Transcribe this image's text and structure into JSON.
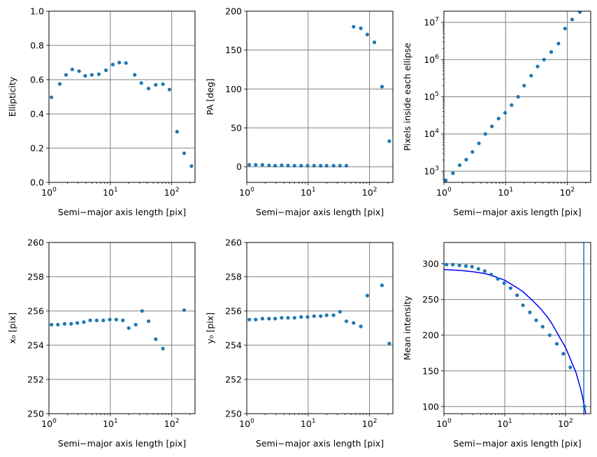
{
  "figure": {
    "background": "#ffffff",
    "point_color": "#1f77b4",
    "grid_color": "#808080"
  },
  "chart_data": [
    {
      "id": "ellipticity",
      "type": "scatter",
      "xscale": "log",
      "yscale": "linear",
      "xlabel": "Semi−major axis length [pix]",
      "ylabel": "Ellipticity",
      "xlim": [
        1,
        240
      ],
      "ylim": [
        0,
        1.0
      ],
      "grid": true,
      "xticks": [
        {
          "v": 1,
          "base": "10",
          "exp": "0"
        },
        {
          "v": 10,
          "base": "10",
          "exp": "1"
        },
        {
          "v": 100,
          "base": "10",
          "exp": "2"
        }
      ],
      "yticks": [
        {
          "v": 0,
          "label": "0.0"
        },
        {
          "v": 0.2,
          "label": "0.2"
        },
        {
          "v": 0.4,
          "label": "0.4"
        },
        {
          "v": 0.6,
          "label": "0.6"
        },
        {
          "v": 0.8,
          "label": "0.8"
        },
        {
          "v": 1.0,
          "label": "1.0"
        }
      ],
      "points": [
        [
          1.1,
          0.497
        ],
        [
          1.5,
          0.575
        ],
        [
          1.9,
          0.628
        ],
        [
          2.4,
          0.66
        ],
        [
          3.1,
          0.65
        ],
        [
          3.9,
          0.622
        ],
        [
          5.0,
          0.628
        ],
        [
          6.5,
          0.632
        ],
        [
          8.5,
          0.655
        ],
        [
          11,
          0.688
        ],
        [
          14,
          0.7
        ],
        [
          18,
          0.697
        ],
        [
          25,
          0.628
        ],
        [
          32,
          0.58
        ],
        [
          42,
          0.548
        ],
        [
          55,
          0.57
        ],
        [
          72,
          0.574
        ],
        [
          92,
          0.542
        ],
        [
          122,
          0.296
        ],
        [
          160,
          0.17
        ],
        [
          210,
          0.095
        ]
      ]
    },
    {
      "id": "pa",
      "type": "scatter",
      "xscale": "log",
      "yscale": "linear",
      "xlabel": "Semi−major axis length [pix]",
      "ylabel": "PA [deg]",
      "xlim": [
        1,
        240
      ],
      "ylim": [
        -20,
        200
      ],
      "grid": true,
      "xticks": [
        {
          "v": 1,
          "base": "10",
          "exp": "0"
        },
        {
          "v": 10,
          "base": "10",
          "exp": "1"
        },
        {
          "v": 100,
          "base": "10",
          "exp": "2"
        }
      ],
      "yticks": [
        {
          "v": 0,
          "label": "0"
        },
        {
          "v": 50,
          "label": "50"
        },
        {
          "v": 100,
          "label": "100"
        },
        {
          "v": 150,
          "label": "150"
        },
        {
          "v": 200,
          "label": "200"
        }
      ],
      "points": [
        [
          1.1,
          2.5
        ],
        [
          1.4,
          2.5
        ],
        [
          1.8,
          2.5
        ],
        [
          2.3,
          1.8
        ],
        [
          2.9,
          1.5
        ],
        [
          3.7,
          2.0
        ],
        [
          4.7,
          1.6
        ],
        [
          6.0,
          1.5
        ],
        [
          7.7,
          1.5
        ],
        [
          9.8,
          1.5
        ],
        [
          12.5,
          1.5
        ],
        [
          16,
          1.5
        ],
        [
          20,
          1.5
        ],
        [
          26,
          1.5
        ],
        [
          33,
          1.5
        ],
        [
          42,
          1.5
        ],
        [
          55,
          180
        ],
        [
          72,
          178
        ],
        [
          92,
          170
        ],
        [
          120,
          160
        ],
        [
          160,
          103
        ],
        [
          210,
          33
        ]
      ]
    },
    {
      "id": "pixels",
      "type": "scatter",
      "xscale": "log",
      "yscale": "log",
      "xlabel": "Semi−major axis length [pix]",
      "ylabel": "Pixels inside each ellipse",
      "xlim": [
        1,
        240
      ],
      "ylim": [
        500,
        20000000
      ],
      "grid": true,
      "xticks": [
        {
          "v": 1,
          "base": "10",
          "exp": "0"
        },
        {
          "v": 10,
          "base": "10",
          "exp": "1"
        },
        {
          "v": 100,
          "base": "10",
          "exp": "2"
        }
      ],
      "yticks": [
        {
          "v": 1000,
          "base": "10",
          "exp": "3"
        },
        {
          "v": 10000,
          "base": "10",
          "exp": "4"
        },
        {
          "v": 100000,
          "base": "10",
          "exp": "5"
        },
        {
          "v": 1000000,
          "base": "10",
          "exp": "6"
        },
        {
          "v": 10000000,
          "base": "10",
          "exp": "7"
        }
      ],
      "points": [
        [
          1.07,
          570
        ],
        [
          1.4,
          880
        ],
        [
          1.8,
          1450
        ],
        [
          2.3,
          2050
        ],
        [
          2.9,
          3300
        ],
        [
          3.7,
          5600
        ],
        [
          4.7,
          10000
        ],
        [
          6.0,
          16000
        ],
        [
          7.7,
          26000
        ],
        [
          9.8,
          37000
        ],
        [
          12.5,
          60000
        ],
        [
          16,
          100000
        ],
        [
          20,
          200000
        ],
        [
          26,
          370000
        ],
        [
          33,
          650000
        ],
        [
          42,
          1000000
        ],
        [
          55,
          1600000
        ],
        [
          72,
          2700000
        ],
        [
          92,
          6800000
        ],
        [
          120,
          12000000
        ],
        [
          160,
          19000000
        ]
      ]
    },
    {
      "id": "x0",
      "type": "scatter",
      "xscale": "log",
      "yscale": "linear",
      "xlabel": "Semi−major axis length [pix]",
      "ylabel": "x₀ [pix]",
      "xlim": [
        1,
        240
      ],
      "ylim": [
        250,
        260
      ],
      "grid": true,
      "xticks": [
        {
          "v": 1,
          "base": "10",
          "exp": "0"
        },
        {
          "v": 10,
          "base": "10",
          "exp": "1"
        },
        {
          "v": 100,
          "base": "10",
          "exp": "2"
        }
      ],
      "yticks": [
        {
          "v": 250,
          "label": "250"
        },
        {
          "v": 252,
          "label": "252"
        },
        {
          "v": 254,
          "label": "254"
        },
        {
          "v": 256,
          "label": "256"
        },
        {
          "v": 258,
          "label": "258"
        },
        {
          "v": 260,
          "label": "260"
        }
      ],
      "points": [
        [
          1.1,
          255.2
        ],
        [
          1.4,
          255.2
        ],
        [
          1.8,
          255.25
        ],
        [
          2.3,
          255.25
        ],
        [
          2.9,
          255.3
        ],
        [
          3.7,
          255.35
        ],
        [
          4.7,
          255.45
        ],
        [
          6.0,
          255.45
        ],
        [
          7.7,
          255.45
        ],
        [
          9.8,
          255.5
        ],
        [
          12.5,
          255.5
        ],
        [
          16,
          255.45
        ],
        [
          20,
          255.0
        ],
        [
          26,
          255.2
        ],
        [
          33,
          256.0
        ],
        [
          42,
          255.4
        ],
        [
          55,
          254.35
        ],
        [
          72,
          253.8
        ],
        [
          160,
          256.05
        ]
      ]
    },
    {
      "id": "y0",
      "type": "scatter",
      "xscale": "log",
      "yscale": "linear",
      "xlabel": "Semi−major axis length [pix]",
      "ylabel": "y₀ [pix]",
      "xlim": [
        1,
        240
      ],
      "ylim": [
        250,
        260
      ],
      "grid": true,
      "xticks": [
        {
          "v": 1,
          "base": "10",
          "exp": "0"
        },
        {
          "v": 10,
          "base": "10",
          "exp": "1"
        },
        {
          "v": 100,
          "base": "10",
          "exp": "2"
        }
      ],
      "yticks": [
        {
          "v": 250,
          "label": "250"
        },
        {
          "v": 252,
          "label": "252"
        },
        {
          "v": 254,
          "label": "254"
        },
        {
          "v": 256,
          "label": "256"
        },
        {
          "v": 258,
          "label": "258"
        },
        {
          "v": 260,
          "label": "260"
        }
      ],
      "points": [
        [
          1.1,
          255.5
        ],
        [
          1.4,
          255.5
        ],
        [
          1.8,
          255.55
        ],
        [
          2.3,
          255.55
        ],
        [
          2.9,
          255.55
        ],
        [
          3.7,
          255.6
        ],
        [
          4.7,
          255.6
        ],
        [
          6.0,
          255.6
        ],
        [
          7.7,
          255.65
        ],
        [
          9.8,
          255.65
        ],
        [
          12.5,
          255.7
        ],
        [
          16,
          255.7
        ],
        [
          20,
          255.75
        ],
        [
          26,
          255.75
        ],
        [
          33,
          255.95
        ],
        [
          42,
          255.4
        ],
        [
          55,
          255.3
        ],
        [
          72,
          255.1
        ],
        [
          92,
          256.9
        ],
        [
          160,
          257.5
        ],
        [
          210,
          254.1
        ]
      ]
    },
    {
      "id": "intensity",
      "type": "scatter",
      "xscale": "log",
      "yscale": "linear",
      "xlabel": "Semi−major axis length [pix]",
      "ylabel": "Mean intensity",
      "xlim": [
        1,
        260
      ],
      "ylim": [
        90,
        330
      ],
      "grid": true,
      "xticks": [
        {
          "v": 1,
          "base": "10",
          "exp": "0"
        },
        {
          "v": 10,
          "base": "10",
          "exp": "1"
        },
        {
          "v": 100,
          "base": "10",
          "exp": "2"
        }
      ],
      "yticks": [
        {
          "v": 100,
          "label": "100"
        },
        {
          "v": 150,
          "label": "150"
        },
        {
          "v": 200,
          "label": "200"
        },
        {
          "v": 250,
          "label": "250"
        },
        {
          "v": 300,
          "label": "300"
        }
      ],
      "points": [
        [
          1.1,
          299
        ],
        [
          1.4,
          299
        ],
        [
          1.8,
          298
        ],
        [
          2.3,
          297
        ],
        [
          2.9,
          296
        ],
        [
          3.7,
          293
        ],
        [
          4.7,
          290
        ],
        [
          6.0,
          285
        ],
        [
          7.7,
          279
        ],
        [
          9.8,
          273
        ],
        [
          12.5,
          266
        ],
        [
          16,
          256
        ],
        [
          20,
          242
        ],
        [
          26,
          232
        ],
        [
          33,
          221
        ],
        [
          42,
          212
        ],
        [
          55,
          200
        ],
        [
          72,
          188
        ],
        [
          92,
          174
        ],
        [
          120,
          155
        ],
        [
          205,
          100
        ]
      ],
      "fit_line": {
        "color": "#0000ff",
        "points": [
          [
            1,
            292
          ],
          [
            2,
            290.5
          ],
          [
            3,
            289
          ],
          [
            5,
            286
          ],
          [
            7,
            282
          ],
          [
            10,
            277
          ],
          [
            15,
            268
          ],
          [
            20,
            261
          ],
          [
            30,
            247
          ],
          [
            40,
            236
          ],
          [
            50,
            226
          ],
          [
            60,
            216
          ],
          [
            80,
            197
          ],
          [
            100,
            183
          ],
          [
            120,
            167
          ],
          [
            150,
            147
          ],
          [
            180,
            123
          ],
          [
            200,
            105
          ],
          [
            215,
            90
          ]
        ]
      },
      "vline": {
        "x": 200,
        "color": "#1f77b4"
      }
    }
  ]
}
